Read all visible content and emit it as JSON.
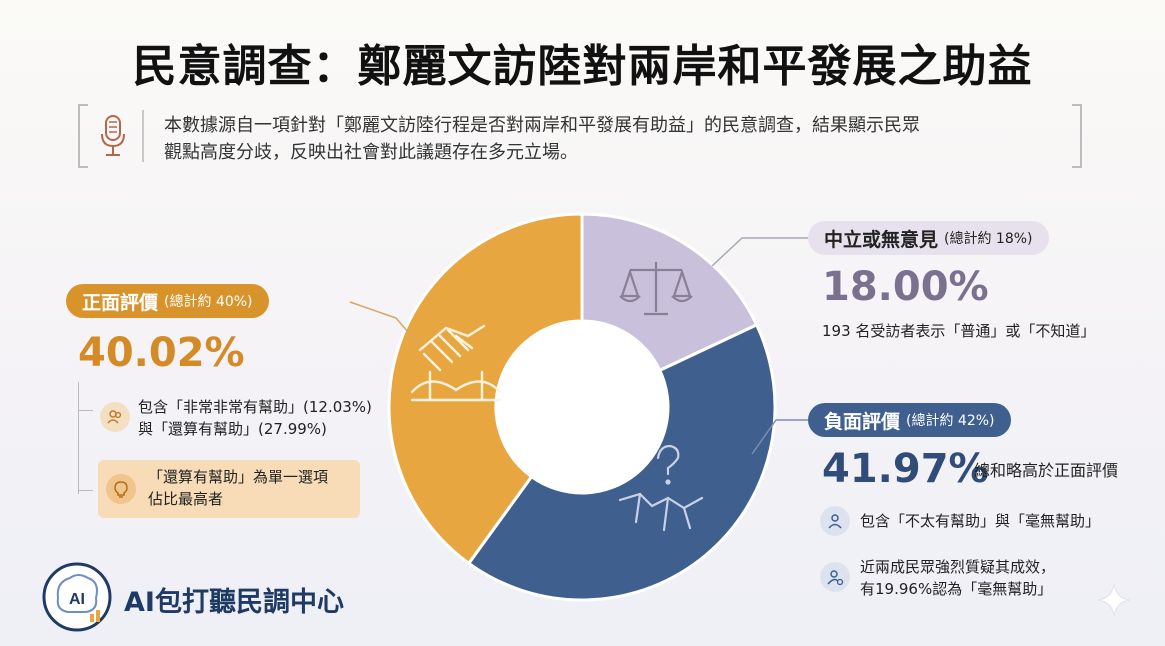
{
  "title": "民意調查：鄭麗文訪陸對兩岸和平發展之助益",
  "intro": {
    "line1": "本數據源自一項針對「鄭麗文訪陸行程是否對兩岸和平發展有助益」的民意調查，結果顯示民眾",
    "line2": "觀點高度分歧，反映出社會對此議題存在多元立場。"
  },
  "chart_data": {
    "type": "pie",
    "categories": [
      "中立或無意見",
      "負面評價",
      "正面評價"
    ],
    "values": [
      18.0,
      41.97,
      40.02
    ],
    "colors": [
      "#c9c1db",
      "#3f5f8e",
      "#e8a640"
    ]
  },
  "positive": {
    "label": "正面評價",
    "sub": "(總計約 40%)",
    "pct": "40.02%",
    "detail1": "包含「非常非常有幫助」(12.03%)",
    "detail2": "與「還算有幫助」(27.99%)",
    "hint1": "「還算有幫助」為單一選項",
    "hint2": "佔比最高者"
  },
  "neutral": {
    "label": "中立或無意見",
    "sub": "(總計約 18%)",
    "pct": "18.00%",
    "desc": "193 名受訪者表示「普通」或「不知道」"
  },
  "negative": {
    "label": "負面評價",
    "sub": "(總計約 42%)",
    "pct": "41.97%",
    "summary": "總和略高於正面評價",
    "detail1": "包含「不太有幫助」與「毫無幫助」",
    "detail2a": "近兩成民眾強烈質疑其成效，",
    "detail2b": "有19.96%認為「毫無幫助」"
  },
  "brand": {
    "name": "AI包打聽民調中心",
    "logo_text": "AI"
  },
  "icons": {
    "intro": "microphone-icon",
    "neutral": "scales-icon",
    "positive": "handshake-icon",
    "negative": "question-crack-icon"
  }
}
